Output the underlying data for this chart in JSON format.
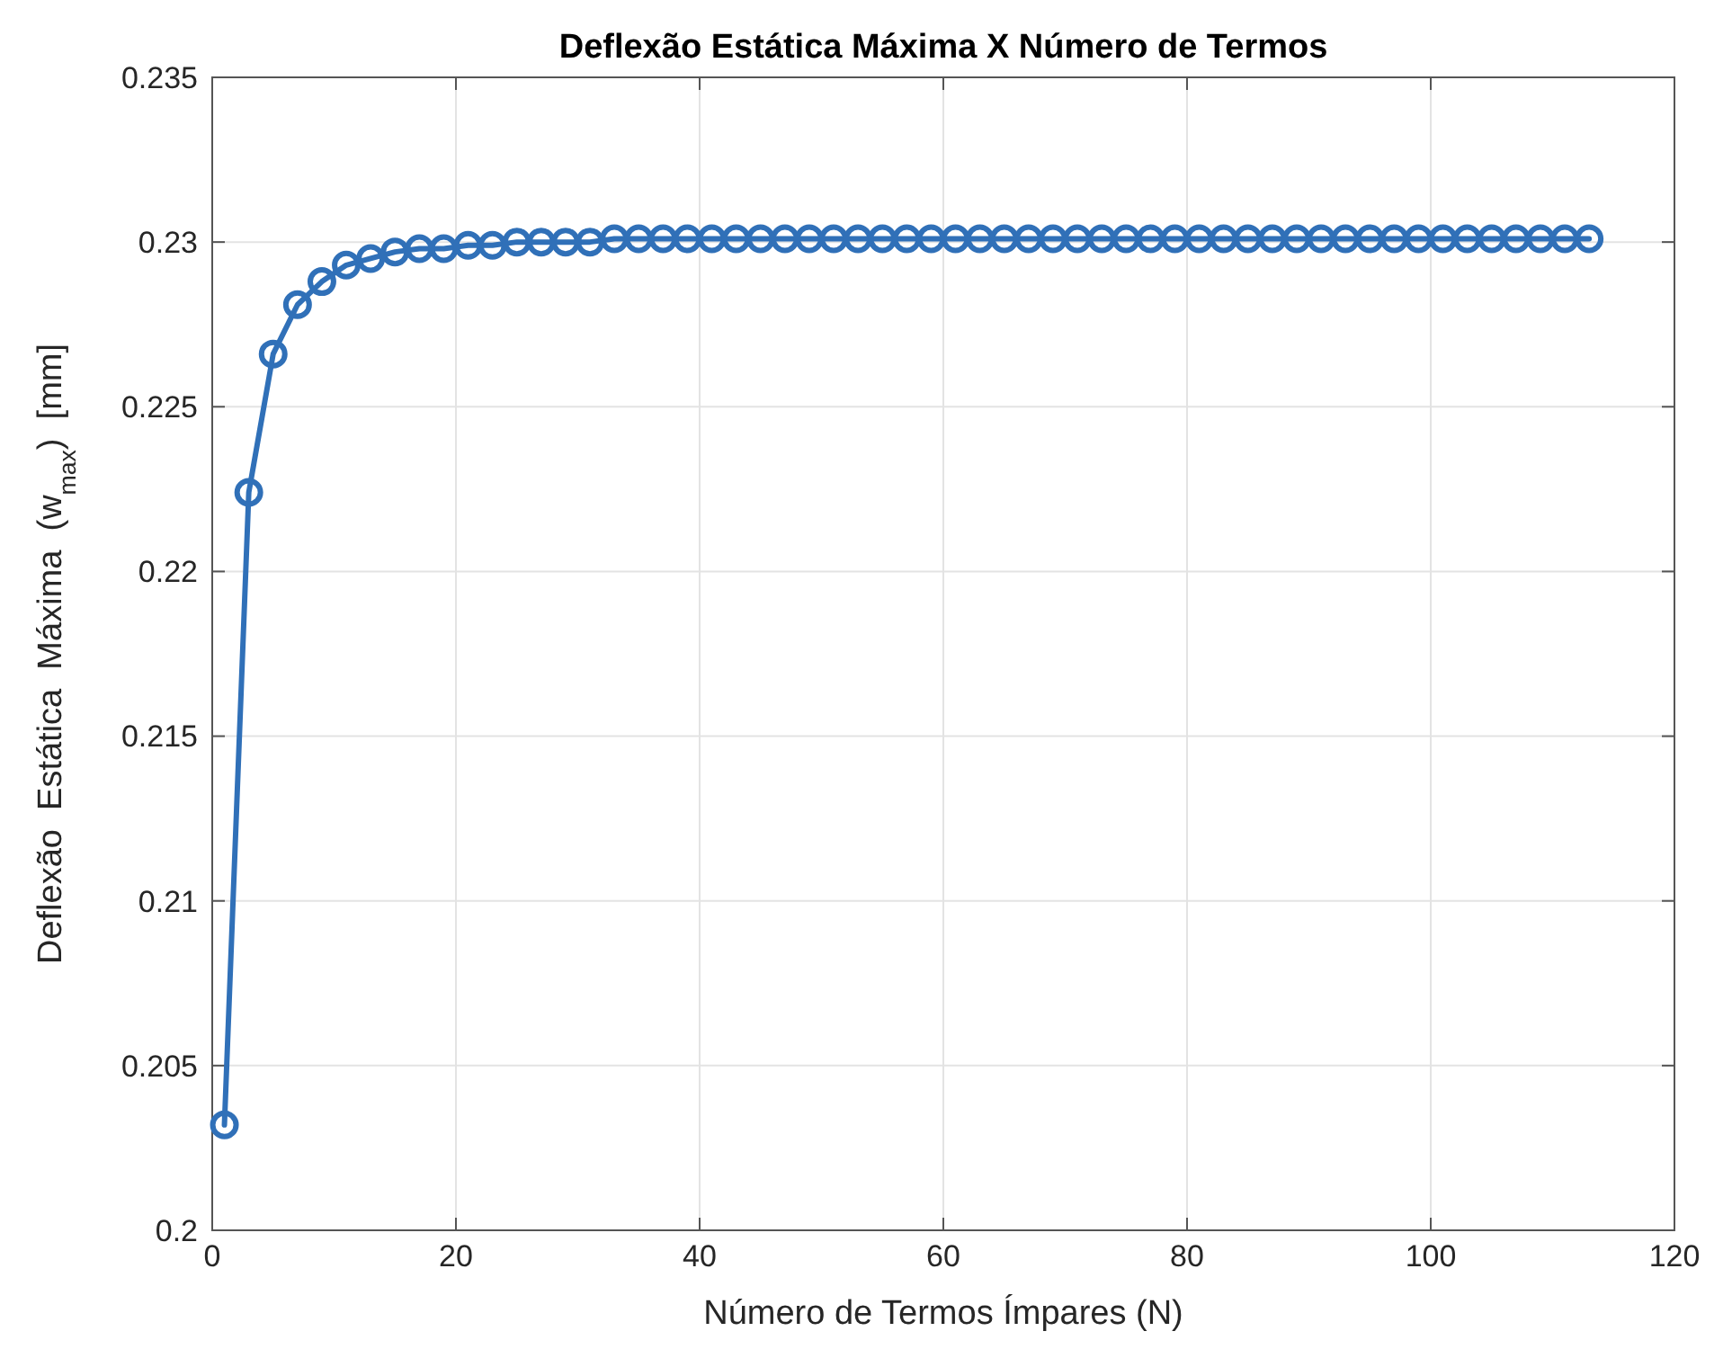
{
  "chart_data": {
    "type": "line",
    "title": "Deflexão Estática Máxima X Número de Termos",
    "xlabel": "Número de Termos Ímpares (N)",
    "ylabel": "Deflexão  Estática  Máxima  (w$_{max}$)  [mm]",
    "x": [
      1,
      3,
      5,
      7,
      9,
      11,
      13,
      15,
      17,
      19,
      21,
      23,
      25,
      27,
      29,
      31,
      33,
      35,
      37,
      39,
      41,
      43,
      45,
      47,
      49,
      51,
      53,
      55,
      57,
      59,
      61,
      63,
      65,
      67,
      69,
      71,
      73,
      75,
      77,
      79,
      81,
      83,
      85,
      87,
      89,
      91,
      93,
      95,
      97,
      99,
      101,
      103,
      105,
      107,
      109,
      111,
      113
    ],
    "series": [
      {
        "color": "#3070b8",
        "values": [
          0.2032,
          0.2224,
          0.2266,
          0.2281,
          0.2288,
          0.2293,
          0.2295,
          0.2297,
          0.2298,
          0.2298,
          0.2299,
          0.2299,
          0.23,
          0.23,
          0.23,
          0.23,
          0.2301,
          0.2301,
          0.2301,
          0.2301,
          0.2301,
          0.2301,
          0.2301,
          0.2301,
          0.2301,
          0.2301,
          0.2301,
          0.2301,
          0.2301,
          0.2301,
          0.2301,
          0.2301,
          0.2301,
          0.2301,
          0.2301,
          0.2301,
          0.2301,
          0.2301,
          0.2301,
          0.2301,
          0.2301,
          0.2301,
          0.2301,
          0.2301,
          0.2301,
          0.2301,
          0.2301,
          0.2301,
          0.2301,
          0.2301,
          0.2301,
          0.2301,
          0.2301,
          0.2301,
          0.2301,
          0.2301,
          0.2301
        ]
      }
    ],
    "xlim": [
      0,
      120
    ],
    "xticks": [
      0,
      20,
      40,
      60,
      80,
      100,
      120
    ],
    "ylim": [
      0.2,
      0.235
    ],
    "yticks": [
      0.2,
      0.205,
      0.21,
      0.215,
      0.22,
      0.225,
      0.23,
      0.235
    ],
    "grid": true,
    "marker": "circle",
    "line_style": "solid"
  }
}
